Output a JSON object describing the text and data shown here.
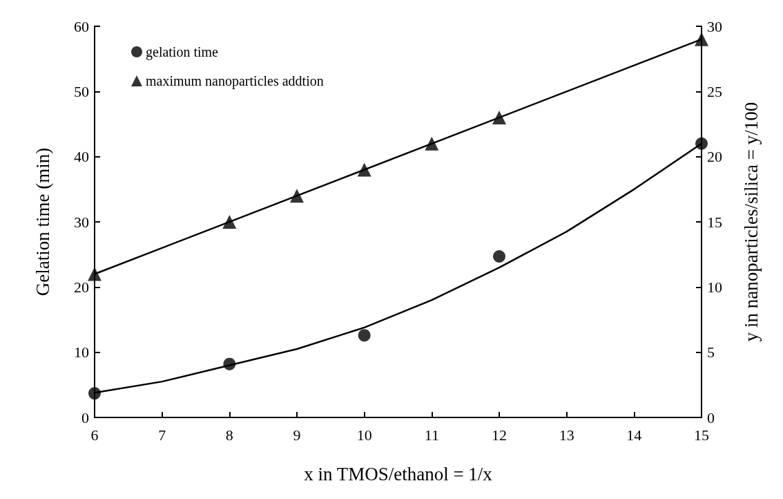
{
  "chart_data": {
    "type": "scatter",
    "xlabel": "x in TMOS/ethanol = 1/x",
    "ylabel": "Gelation time (min)",
    "y2label": "y in nanoparticles/silica = y/100",
    "xlim": [
      6,
      15
    ],
    "xticks": [
      6,
      7,
      8,
      9,
      10,
      11,
      12,
      13,
      14,
      15
    ],
    "ylim": [
      0,
      60
    ],
    "yticks": [
      0,
      10,
      20,
      30,
      40,
      50,
      60
    ],
    "y2lim": [
      0,
      30
    ],
    "y2ticks": [
      0,
      5,
      10,
      15,
      20,
      25,
      30
    ],
    "grid": false,
    "legend": "top left",
    "series": [
      {
        "name": "gelation time",
        "color": "#000000",
        "marker": "circle",
        "x": [
          6,
          8,
          10,
          12,
          15
        ],
        "values": [
          3.7,
          8.2,
          12.6,
          24.7,
          42
        ]
      },
      {
        "name": "maximum nanoparticles addtion",
        "color": "#000000",
        "marker": "triangle",
        "axis": "y2",
        "x": [
          6,
          8,
          9,
          10,
          11,
          12,
          15
        ],
        "values": [
          11,
          15,
          17,
          19,
          21,
          23,
          29
        ]
      },
      {
        "type": "line",
        "color": "#000000",
        "marker": "none",
        "x": [
          6,
          7,
          8,
          9,
          10,
          11,
          12,
          13,
          14,
          15
        ],
        "values": [
          3.8,
          5.5,
          8,
          10.5,
          13.8,
          18,
          23,
          28.5,
          35,
          42
        ]
      },
      {
        "type": "line",
        "color": "#000000",
        "marker": "none",
        "axis": "y2",
        "x": [
          6,
          15
        ],
        "values": [
          11,
          29
        ]
      }
    ]
  }
}
